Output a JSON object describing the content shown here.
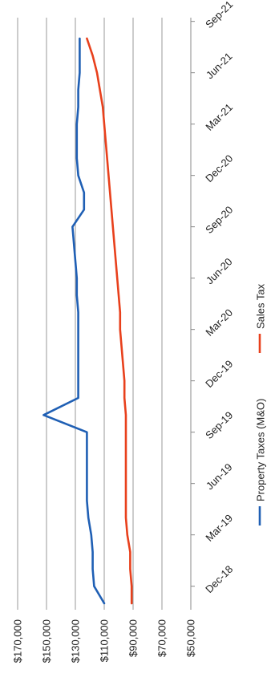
{
  "chart_data": {
    "type": "line",
    "title": "",
    "xlabel": "",
    "ylabel": "",
    "ylim": [
      50000,
      170000
    ],
    "y_ticks": [
      170000,
      150000,
      130000,
      110000,
      90000,
      70000,
      50000
    ],
    "y_tick_labels": [
      "$170,000",
      "$150,000",
      "$130,000",
      "$110,000",
      "$90,000",
      "$70,000",
      "$50,000"
    ],
    "x_ticks": [
      "Dec-18",
      "Mar-19",
      "Jun-19",
      "Sep-19",
      "Dec-19",
      "Mar-20",
      "Jun-20",
      "Sep-20",
      "Dec-20",
      "Mar-21",
      "Jun-21",
      "Sep-21"
    ],
    "grid": true,
    "legend": "bottom",
    "orientation": "rotated-90-clockwise",
    "x": [
      "Nov-18",
      "Dec-18",
      "Jan-19",
      "Feb-19",
      "Mar-19",
      "Apr-19",
      "May-19",
      "Jun-19",
      "Jul-19",
      "Aug-19",
      "Sep-19",
      "Oct-19",
      "Nov-19",
      "Dec-19",
      "Jan-20",
      "Feb-20",
      "Mar-20",
      "Apr-20",
      "May-20",
      "Jun-20",
      "Jul-20",
      "Aug-20",
      "Sep-20",
      "Oct-20",
      "Nov-20",
      "Dec-20",
      "Jan-21",
      "Feb-21",
      "Mar-21",
      "Apr-21",
      "May-21",
      "Jun-21",
      "Jul-21",
      "Aug-21"
    ],
    "series": [
      {
        "name": "Property Taxes (M&O)",
        "color": "#1f5fb4",
        "values": [
          110000,
          117000,
          118000,
          118000,
          119000,
          121000,
          122000,
          122000,
          122000,
          122000,
          122000,
          152000,
          128000,
          128000,
          128000,
          128000,
          128000,
          128000,
          129000,
          129000,
          130000,
          131000,
          132000,
          124000,
          124000,
          128000,
          129000,
          129000,
          129000,
          128000,
          128000,
          127000,
          127000,
          127000
        ]
      },
      {
        "name": "Sales Tax",
        "color": "#e8401c",
        "values": [
          91000,
          91000,
          92000,
          92000,
          94000,
          95000,
          95000,
          95000,
          95000,
          95000,
          95000,
          95000,
          96000,
          96000,
          97000,
          98000,
          99000,
          99000,
          100000,
          101000,
          102000,
          103000,
          104000,
          105000,
          106000,
          107000,
          108000,
          109000,
          110000,
          111000,
          113000,
          115000,
          118000,
          122000
        ]
      }
    ]
  }
}
